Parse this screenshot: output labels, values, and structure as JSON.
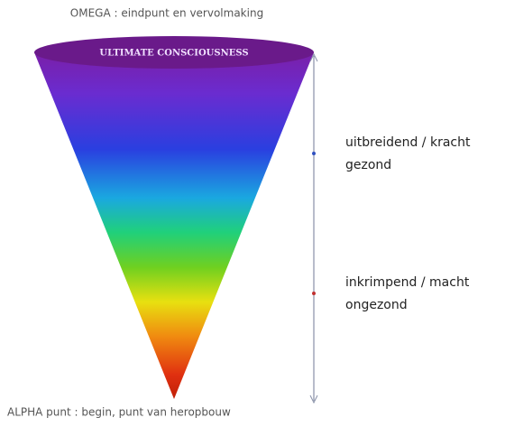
{
  "top_label": "OMEGA : eindpunt en vervolmaking",
  "cone_label": "ULTIMATE CONSCIOUSNESS",
  "annotations": [
    {
      "lines": [
        "uitbreidend / kracht",
        "gezond"
      ]
    },
    {
      "lines": [
        "inkrimpend / macht",
        "ongezond"
      ]
    }
  ],
  "bottom_label": "ALPHA punt : begin, punt van heropbouw"
}
